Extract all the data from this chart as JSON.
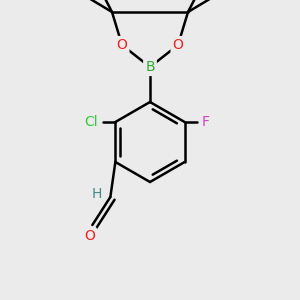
{
  "bg_color": "#ebebeb",
  "bond_color": "#000000",
  "bond_width": 1.8,
  "fig_size": [
    3.0,
    3.0
  ],
  "dpi": 100,
  "colors": {
    "B": "#33aa33",
    "O": "#ee2222",
    "Cl": "#33cc33",
    "F": "#cc44cc",
    "H": "#448888",
    "C": "#000000"
  },
  "font_size": 9.5
}
